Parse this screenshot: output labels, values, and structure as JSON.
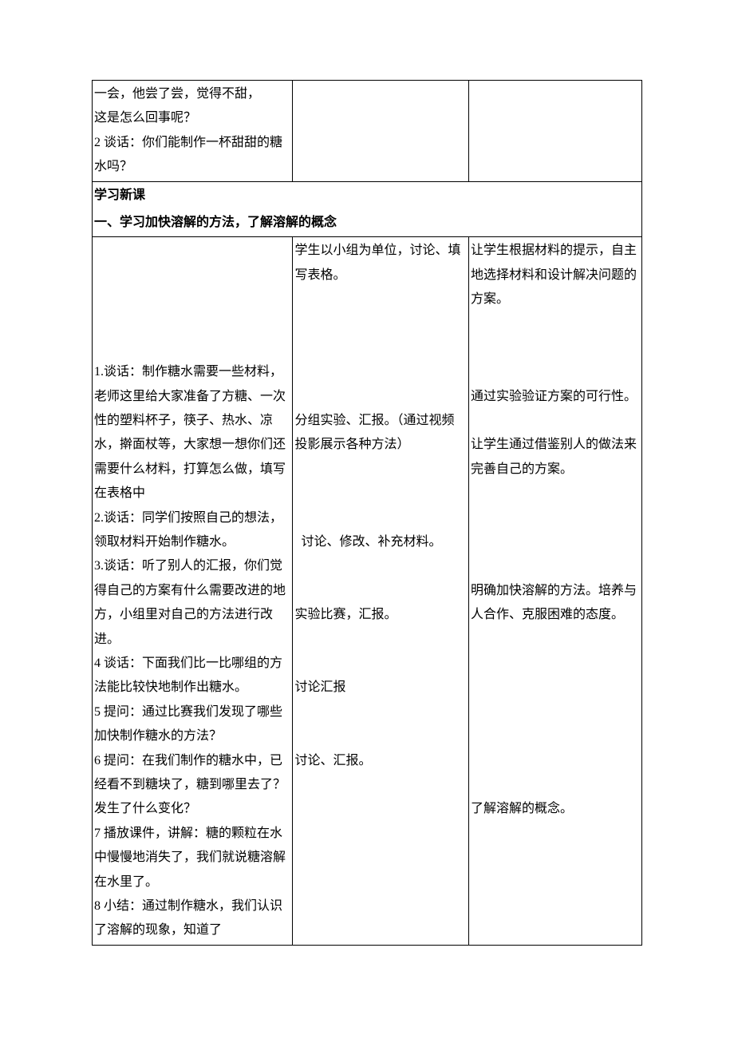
{
  "row1": {
    "c1": "一会，他尝了尝，觉得不甜，\n这是怎么回事呢？\n2 谈话：你们能制作一杯甜甜的糖水吗？",
    "c2": "",
    "c3": ""
  },
  "header1": "学习新课",
  "header2": "一、学习加快溶解的方法，了解溶解的概念",
  "row2": {
    "c1": "\n\n\n\n\n1.谈话：制作糖水需要一些材料，老师这里给大家准备了方糖、一次性的塑料杯子，筷子、热水、凉水，擀面杖等，大家想一想你们还需要什么材料，打算怎么做，填写在表格中\n2.谈话：同学们按照自己的想法，领取材料开始制作糖水。\n3.谈话：听了别人的汇报，你们觉得自己的方案有什么需要改进的地方，小组里对自己的方法进行改进。\n4 谈话：下面我们比一比哪组的方法能比较快地制作出糖水。\n5 提问：通过比赛我们发现了哪些加快制作糖水的方法？\n6 提问：在我们制作的糖水中，已经看不到糖块了，糖到哪里去了？发生了什么变化？\n7 播放课件，讲解：糖的颗粒在水中慢慢地消失了，我们就说糖溶解在水里了。\n8 小结：通过制作糖水，我们认识了溶解的现象，知道了",
    "c2": "学生以小组为单位，讨论、填写表格。\n\n\n\n\n\n分组实验、汇报。（通过视频投影展示各种方法）\n\n\n\n  讨论、修改、补充材料。\n\n\n实验比赛，汇报。\n\n\n讨论汇报\n\n\n讨论、汇报。",
    "c3": "让学生根据材料的提示，自主地选择材料和设计解决问题的方案。\n\n\n\n通过实验验证方案的可行性。\n\n让学生通过借鉴别人的做法来完善自己的方案。\n\n\n\n\n明确加快溶解的方法。培养与人合作、克服困难的态度。\n\n\n\n\n\n\n\n了解溶解的概念。"
  }
}
